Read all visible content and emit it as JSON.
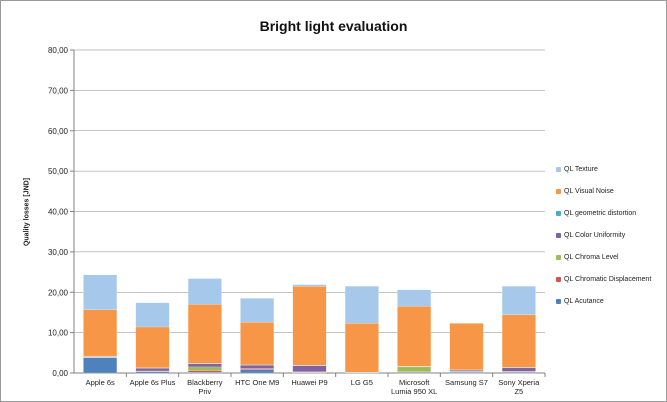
{
  "chart_data": {
    "type": "bar",
    "stacked": true,
    "title": "Bright light evaluation",
    "xlabel": "",
    "ylabel": "Quality losses [JND]",
    "ylim": [
      0,
      80
    ],
    "yticks": [
      "0,00",
      "10,00",
      "20,00",
      "30,00",
      "40,00",
      "50,00",
      "60,00",
      "70,00",
      "80,00"
    ],
    "grid": true,
    "legend_position": "right",
    "categories": [
      "Apple 6s",
      "Apple 6s Plus",
      "Blackberry Priv",
      "HTC One M9",
      "Huawei P9",
      "LG G5",
      "Microsoft Lumia 950 XL",
      "Samsung S7",
      "Sony Xperia Z5"
    ],
    "category_labels": [
      [
        "Apple 6s"
      ],
      [
        "Apple 6s Plus"
      ],
      [
        "Blackberry",
        "Priv"
      ],
      [
        "HTC One M9"
      ],
      [
        "Huawei P9"
      ],
      [
        "LG G5"
      ],
      [
        "Microsoft",
        "Lumia 950 XL"
      ],
      [
        "Samsung S7"
      ],
      [
        "Sony Xperia",
        "Z5"
      ]
    ],
    "series": [
      {
        "name": "QL Acutance",
        "color": "#4f81bd",
        "values": [
          3.8,
          0.3,
          0.2,
          0.8,
          0.1,
          0.1,
          0.2,
          0.2,
          0.2
        ]
      },
      {
        "name": "QL Chromatic Displacement",
        "color": "#d9534f",
        "values": [
          0.1,
          0.1,
          0.4,
          0.2,
          0.1,
          0.0,
          0.1,
          0.1,
          0.1
        ]
      },
      {
        "name": "QL Chroma Level",
        "color": "#9bbb59",
        "values": [
          0.1,
          0.1,
          0.9,
          0.1,
          0.1,
          0.0,
          1.2,
          0.1,
          0.1
        ]
      },
      {
        "name": "QL Color Uniformity",
        "color": "#8064a2",
        "values": [
          0.1,
          0.7,
          0.8,
          0.8,
          1.5,
          0.0,
          0.1,
          0.3,
          0.9
        ]
      },
      {
        "name": "QL geometric distortion",
        "color": "#4bacc6",
        "values": [
          0.1,
          0.1,
          0.1,
          0.1,
          0.1,
          0.1,
          0.1,
          0.1,
          0.1
        ]
      },
      {
        "name": "QL Visual Noise",
        "color": "#f79646",
        "values": [
          11.5,
          10.1,
          14.6,
          10.6,
          19.6,
          12.1,
          14.8,
          11.5,
          13.0
        ]
      },
      {
        "name": "QL Texture",
        "color": "#a6c8ea",
        "values": [
          8.6,
          6.0,
          6.4,
          5.9,
          0.4,
          9.2,
          4.1,
          0.0,
          7.1
        ]
      }
    ],
    "legend_order": [
      "QL Texture",
      "QL Visual Noise",
      "QL geometric distortion",
      "QL Color Uniformity",
      "QL Chroma Level",
      "QL Chromatic Displacement",
      "QL Acutance"
    ]
  }
}
